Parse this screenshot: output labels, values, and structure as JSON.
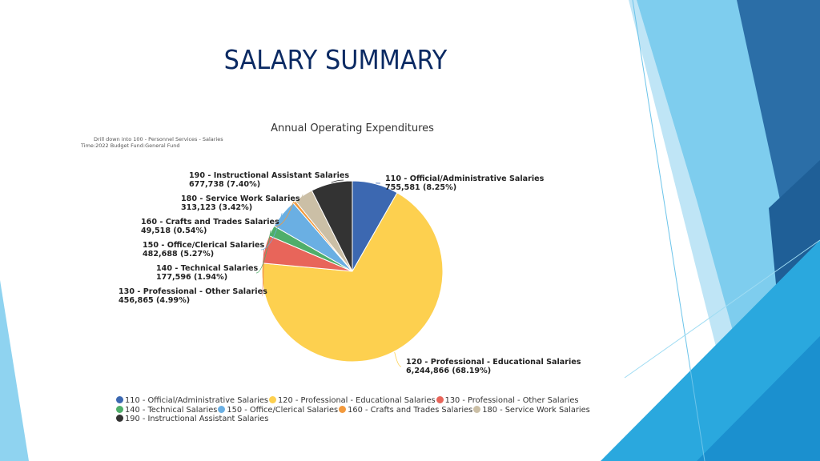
{
  "slide": {
    "title": "SALARY SUMMARY",
    "subtitle_line1": "Drill down into 100 - Personnel Services - Salaries",
    "subtitle_line2": "Time:2022 Budget Fund:General Fund"
  },
  "chart_data": {
    "type": "pie",
    "title": "Annual Operating Expenditures",
    "legend_position": "bottom",
    "slices": [
      {
        "label": "110 - Official/Administrative Salaries",
        "value": 755581,
        "value_text": "755,581",
        "percent_text": "8.25%",
        "color": "#3c68b1"
      },
      {
        "label": "120 - Professional - Educational Salaries",
        "value": 6244866,
        "value_text": "6,244,866",
        "percent_text": "68.19%",
        "color": "#fdd04f"
      },
      {
        "label": "130 - Professional - Other Salaries",
        "value": 456865,
        "value_text": "456,865",
        "percent_text": "4.99%",
        "color": "#e8655a"
      },
      {
        "label": "140 - Technical Salaries",
        "value": 177596,
        "value_text": "177,596",
        "percent_text": "1.94%",
        "color": "#4fae6a"
      },
      {
        "label": "150 - Office/Clerical Salaries",
        "value": 482688,
        "value_text": "482,688",
        "percent_text": "5.27%",
        "color": "#6aafe3"
      },
      {
        "label": "160 - Crafts and Trades Salaries",
        "value": 49518,
        "value_text": "49,518",
        "percent_text": "0.54%",
        "color": "#f39a3d"
      },
      {
        "label": "180 - Service Work Salaries",
        "value": 313123,
        "value_text": "313,123",
        "percent_text": "3.42%",
        "color": "#cbbfa6"
      },
      {
        "label": "190 - Instructional Assistant Salaries",
        "value": 677738,
        "value_text": "677,738",
        "percent_text": "7.40%",
        "color": "#333333"
      }
    ]
  }
}
